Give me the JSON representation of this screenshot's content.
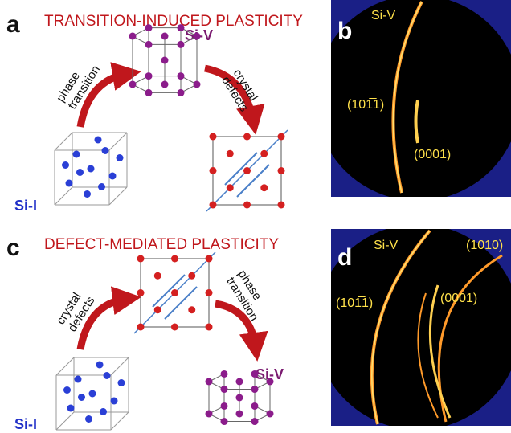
{
  "panels": [
    {
      "letter": "a",
      "title": "TRANSITION-INDUCED PLASTICITY",
      "arrow1": [
        "phase",
        "transition"
      ],
      "arrow2": [
        "crystal",
        "defects"
      ],
      "start_phase": "Si-I",
      "end_phase": "Si-V"
    },
    {
      "letter": "b",
      "phase": "Si-V",
      "reflections": [
        "(101̅1)",
        "(0001)"
      ]
    },
    {
      "letter": "c",
      "title": "DEFECT-MEDIATED PLASTICITY",
      "arrow1": [
        "crystal",
        "defects"
      ],
      "arrow2": [
        "phase",
        "transition"
      ],
      "start_phase": "Si-I",
      "end_phase": "Si-V"
    },
    {
      "letter": "d",
      "phase": "Si-V",
      "reflections": [
        "(101̅0)",
        "(101̅1)",
        "(0001)"
      ]
    }
  ]
}
